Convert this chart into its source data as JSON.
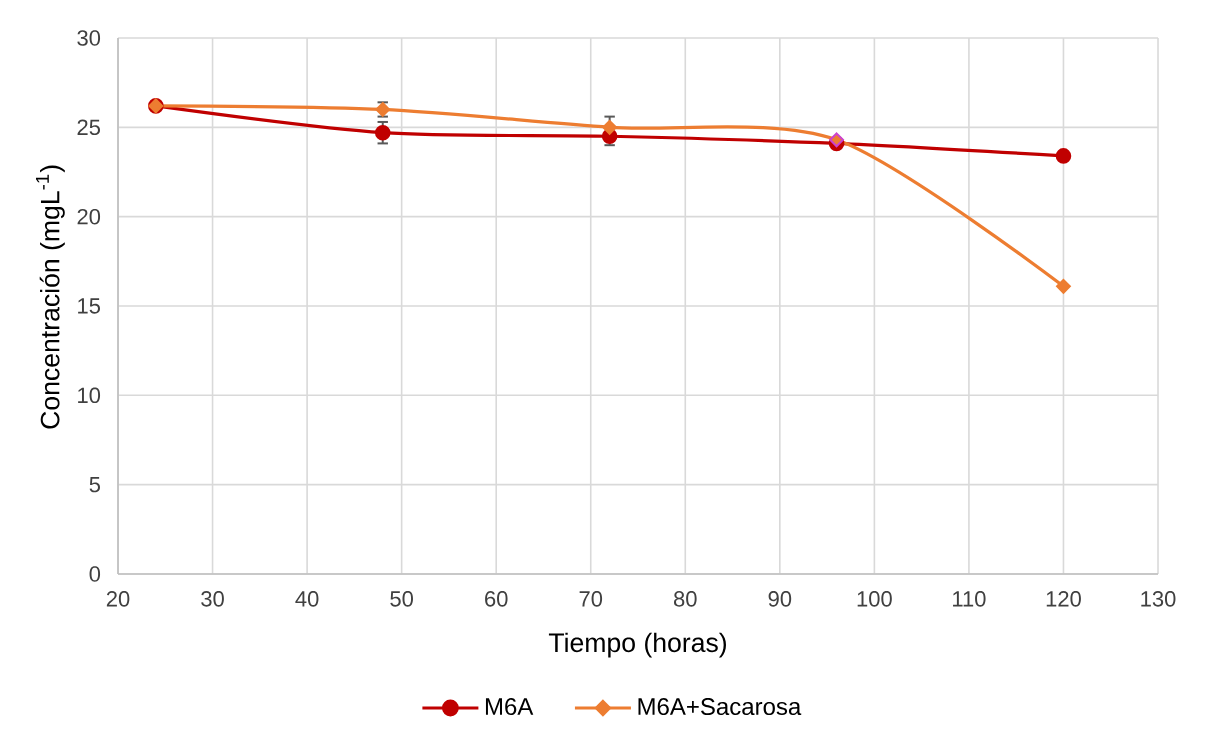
{
  "chart_data": {
    "type": "line",
    "xlabel": "Tiempo (horas)",
    "ylabel": "Concentración (mgL$^{-1}$)",
    "x": [
      24,
      48,
      72,
      96,
      120
    ],
    "series": [
      {
        "name": "M6A",
        "color": "#c00000",
        "marker": "circle",
        "values": [
          26.2,
          24.7,
          24.5,
          24.1,
          23.4
        ],
        "errors": [
          null,
          0.6,
          [
            24.0,
            24.5
          ],
          null,
          null
        ]
      },
      {
        "name": "M6A+Sacarosa",
        "color": "#ed7d31",
        "marker": "diamond",
        "values": [
          26.2,
          26.0,
          25.0,
          24.3,
          16.1
        ],
        "errors": [
          null,
          0.4,
          [
            25.0,
            25.6
          ],
          null,
          null
        ],
        "colors": [
          "#ed7d31",
          "#ed7d31",
          "#ed7d31",
          "#cc44cc",
          "#ed7d31"
        ]
      }
    ],
    "xlim": [
      20,
      130
    ],
    "xticks": [
      20,
      30,
      40,
      50,
      60,
      70,
      80,
      90,
      100,
      110,
      120,
      130
    ],
    "ylim": [
      0,
      30
    ],
    "yticks": [
      0,
      5,
      10,
      15,
      20,
      25,
      30
    ],
    "grid": true,
    "legend": "bottom",
    "line_style": "solid"
  }
}
